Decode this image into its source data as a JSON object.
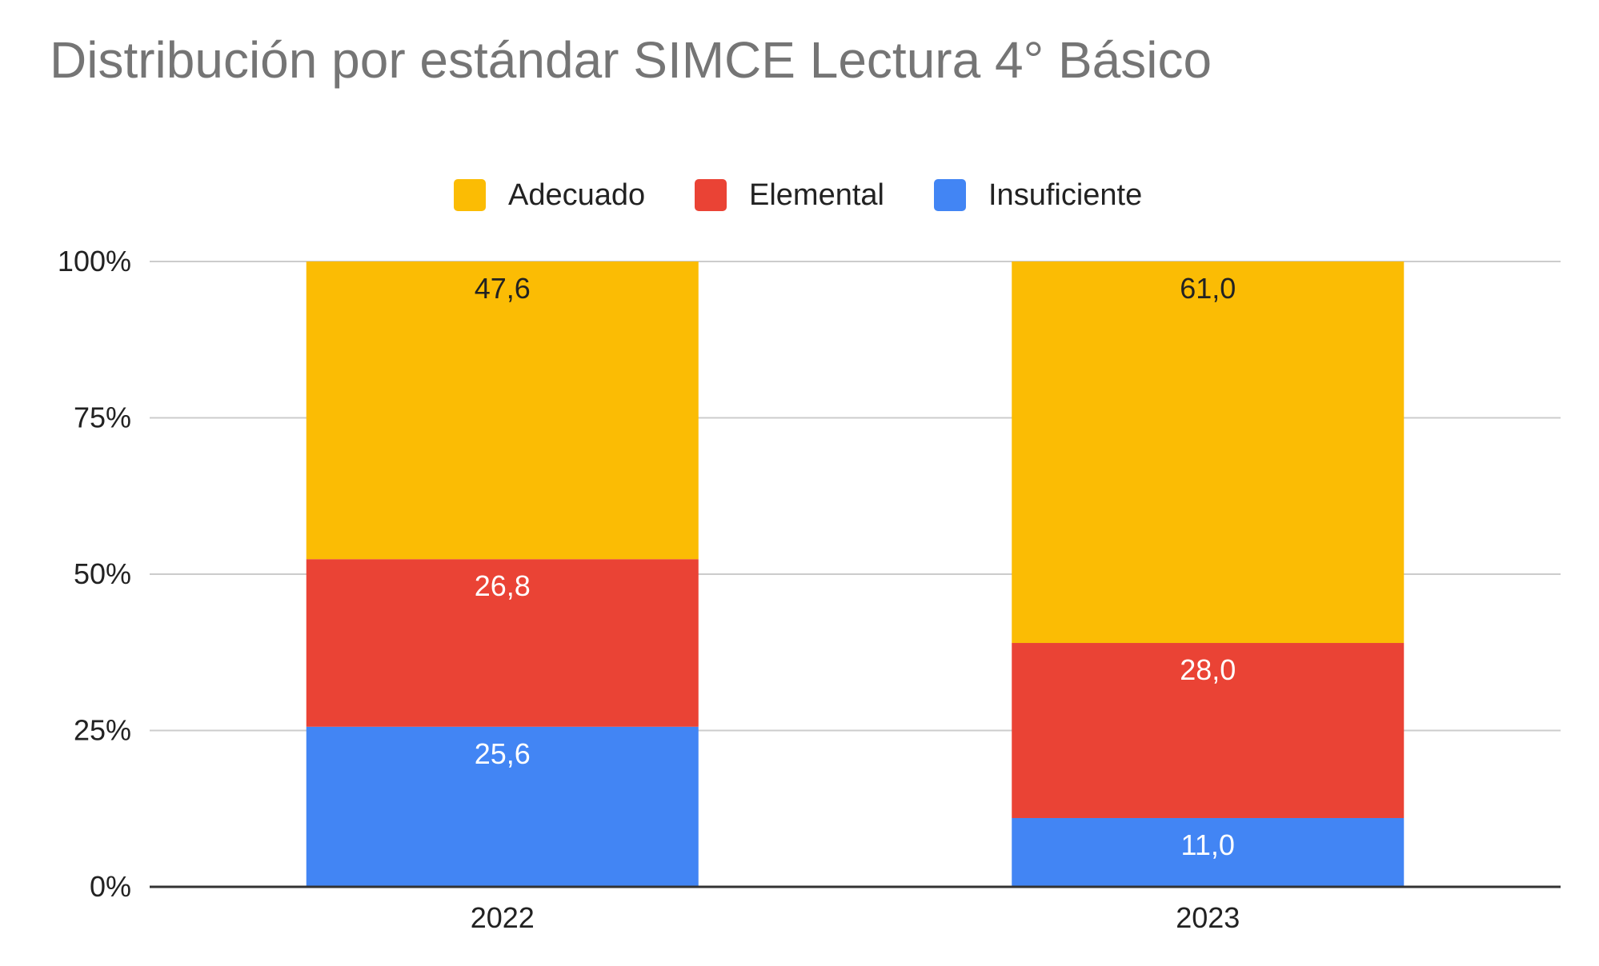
{
  "chart_data": {
    "type": "bar",
    "stacked": true,
    "title": "Distribución por estándar SIMCE Lectura 4° Básico",
    "categories": [
      "2022",
      "2023"
    ],
    "series": [
      {
        "name": "Insuficiente",
        "values": [
          25.6,
          11.0
        ],
        "labels": [
          "25,6",
          "11,0"
        ],
        "color": "#4285f4",
        "label_color": "#ffffff"
      },
      {
        "name": "Elemental",
        "values": [
          26.8,
          28.0
        ],
        "labels": [
          "26,8",
          "28,0"
        ],
        "color": "#ea4335",
        "label_color": "#ffffff"
      },
      {
        "name": "Adecuado",
        "values": [
          47.6,
          61.0
        ],
        "labels": [
          "47,6",
          "61,0"
        ],
        "color": "#fbbc04",
        "label_color": "#222222"
      }
    ],
    "legend_order": [
      "Adecuado",
      "Elemental",
      "Insuficiente"
    ],
    "legend_position": "top",
    "y_ticks": [
      "0%",
      "25%",
      "50%",
      "75%",
      "100%"
    ],
    "ylim": [
      0,
      100
    ],
    "grid": true
  }
}
